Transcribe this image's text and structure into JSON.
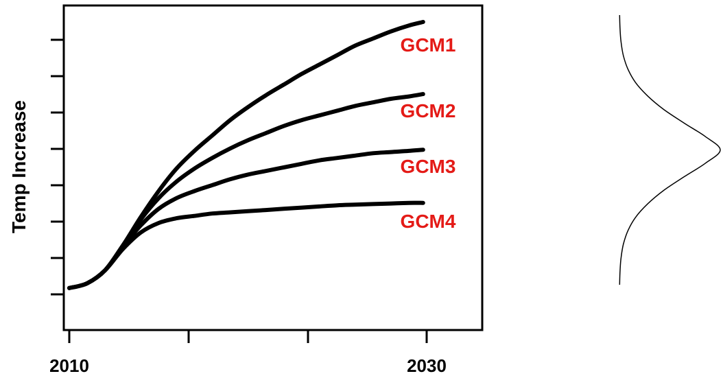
{
  "chart_data": [
    {
      "type": "line",
      "title": "",
      "xlabel": "",
      "ylabel": "Temp Increase",
      "x_tick_labels": [
        "2010",
        "2030"
      ],
      "xlim": [
        2010,
        2030
      ],
      "grid": false,
      "legend": "labels at line ends (right)",
      "colors": {
        "lines": "#000000",
        "labels": "#e41b17",
        "axis": "#000000"
      },
      "series": [
        {
          "name": "GCM1",
          "x": [
            2010,
            2011,
            2012,
            2013,
            2014,
            2015,
            2016,
            2017,
            2018,
            2019,
            2020,
            2021,
            2022,
            2023,
            2024,
            2025,
            2026,
            2027,
            2028,
            2029,
            2029.8
          ],
          "y": [
            0.3,
            0.7,
            1.8,
            3.9,
            6.3,
            8.5,
            10.4,
            11.9,
            13.2,
            14.5,
            15.6,
            16.6,
            17.5,
            18.4,
            19.2,
            20.0,
            20.8,
            21.4,
            22.0,
            22.5,
            22.8
          ]
        },
        {
          "name": "GCM2",
          "x": [
            2010,
            2011,
            2012,
            2013,
            2014,
            2015,
            2016,
            2017,
            2018,
            2019,
            2020,
            2021,
            2022,
            2023,
            2024,
            2025,
            2026,
            2027,
            2028,
            2029,
            2029.8
          ],
          "y": [
            0.3,
            0.7,
            1.8,
            3.9,
            6.1,
            7.9,
            9.3,
            10.4,
            11.3,
            12.1,
            12.8,
            13.4,
            14.0,
            14.5,
            14.9,
            15.3,
            15.7,
            16.0,
            16.3,
            16.5,
            16.7
          ]
        },
        {
          "name": "GCM3",
          "x": [
            2010,
            2011,
            2012,
            2013,
            2014,
            2015,
            2016,
            2017,
            2018,
            2019,
            2020,
            2021,
            2022,
            2023,
            2024,
            2025,
            2026,
            2027,
            2028,
            2029,
            2029.8
          ],
          "y": [
            0.3,
            0.7,
            1.8,
            3.8,
            5.6,
            7.0,
            7.9,
            8.5,
            9.0,
            9.5,
            9.9,
            10.2,
            10.5,
            10.8,
            11.1,
            11.3,
            11.5,
            11.7,
            11.8,
            11.9,
            12.0
          ]
        },
        {
          "name": "GCM4",
          "x": [
            2010,
            2011,
            2012,
            2013,
            2014,
            2015,
            2016,
            2017,
            2018,
            2019,
            2020,
            2021,
            2022,
            2023,
            2024,
            2025,
            2026,
            2027,
            2028,
            2029,
            2029.8
          ],
          "y": [
            0.3,
            0.7,
            1.8,
            3.6,
            5.0,
            5.8,
            6.2,
            6.4,
            6.6,
            6.7,
            6.8,
            6.9,
            7.0,
            7.1,
            7.2,
            7.3,
            7.35,
            7.4,
            7.45,
            7.5,
            7.5
          ]
        }
      ]
    },
    {
      "type": "line",
      "title": "",
      "xlabel": "",
      "ylabel": "",
      "description": "",
      "grid": false,
      "series": [
        {
          "name": "",
          "y": [
            -1.0,
            -0.9,
            -0.8,
            -0.7,
            -0.6,
            -0.5,
            -0.4,
            -0.3,
            -0.2,
            -0.1,
            0.0,
            0.1,
            0.2,
            0.3,
            0.4,
            0.5,
            0.6,
            0.7,
            0.8,
            0.9,
            1.0
          ],
          "x": [
            0.002,
            0.006,
            0.016,
            0.039,
            0.084,
            0.16,
            0.28,
            0.44,
            0.64,
            0.85,
            1.0,
            0.85,
            0.64,
            0.44,
            0.28,
            0.16,
            0.084,
            0.039,
            0.016,
            0.006,
            0.002
          ]
        }
      ]
    }
  ]
}
